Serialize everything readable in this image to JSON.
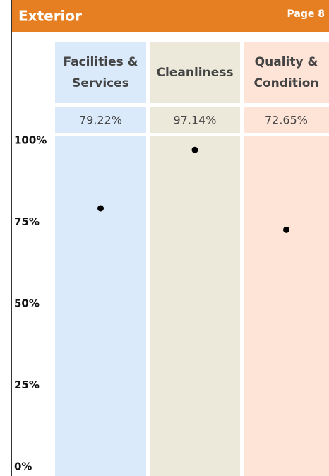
{
  "header": {
    "title": "Exterior",
    "page": "Page 8"
  },
  "chart_data": {
    "type": "dot",
    "categories": [
      "Facilities & Services",
      "Cleanliness",
      "Quality & Condition"
    ],
    "values": [
      79.22,
      97.14,
      72.65
    ],
    "value_labels": [
      "79.22%",
      "97.14%",
      "72.65%"
    ],
    "colors": [
      "#dbeafb",
      "#ece8da",
      "#fde4d7"
    ],
    "color": "#000000",
    "ylim": [
      0,
      100
    ],
    "yticks": [
      {
        "value": 0,
        "label": "0%"
      },
      {
        "value": 25,
        "label": "25%"
      },
      {
        "value": 50,
        "label": "50%"
      },
      {
        "value": 75,
        "label": "75%"
      },
      {
        "value": 100,
        "label": "100%"
      }
    ]
  }
}
